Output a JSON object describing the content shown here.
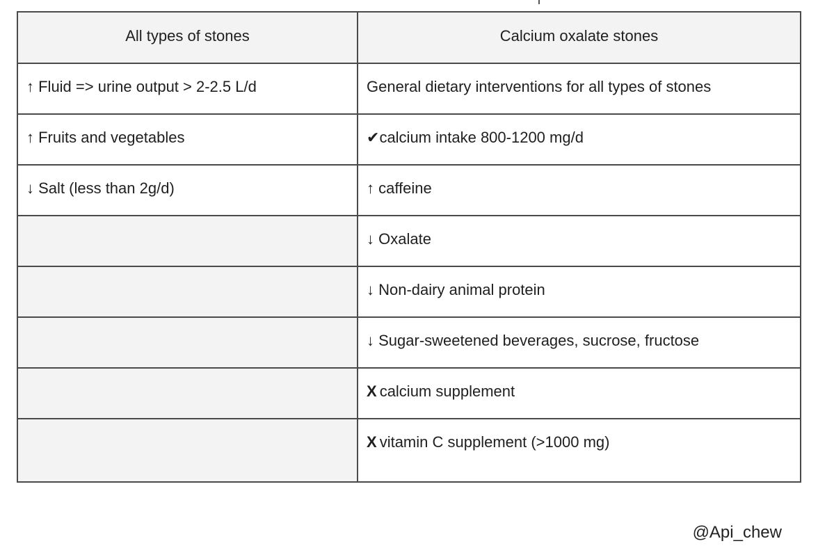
{
  "table": {
    "headers": [
      "All types of stones",
      "Calcium oxalate stones"
    ],
    "rows": [
      {
        "left": "↑ Fluid => urine output > 2-2.5 L/d",
        "right_mark": "",
        "right": "General dietary interventions for all types of stones"
      },
      {
        "left": "↑ Fruits and vegetables",
        "right_mark": "✔",
        "right": "calcium intake 800-1200 mg/d"
      },
      {
        "left": "↓ Salt (less than 2g/d)",
        "right_mark": "",
        "right": "↑ caffeine"
      },
      {
        "left": "",
        "right_mark": "",
        "right": "↓ Oxalate"
      },
      {
        "left": "",
        "right_mark": "",
        "right": "↓ Non-dairy animal protein"
      },
      {
        "left": "",
        "right_mark": "",
        "right": "↓ Sugar-sweetened beverages, sucrose, fructose"
      },
      {
        "left": "",
        "right_mark": "X",
        "right": "calcium supplement"
      },
      {
        "left": "",
        "right_mark": "X",
        "right": "vitamin C supplement (>1000 mg)"
      }
    ],
    "empty_cell_color": "#f3f3f3",
    "header_bg": "#f3f3f3",
    "border_color": "#4a4a4a"
  },
  "credit": "@Api_chew"
}
